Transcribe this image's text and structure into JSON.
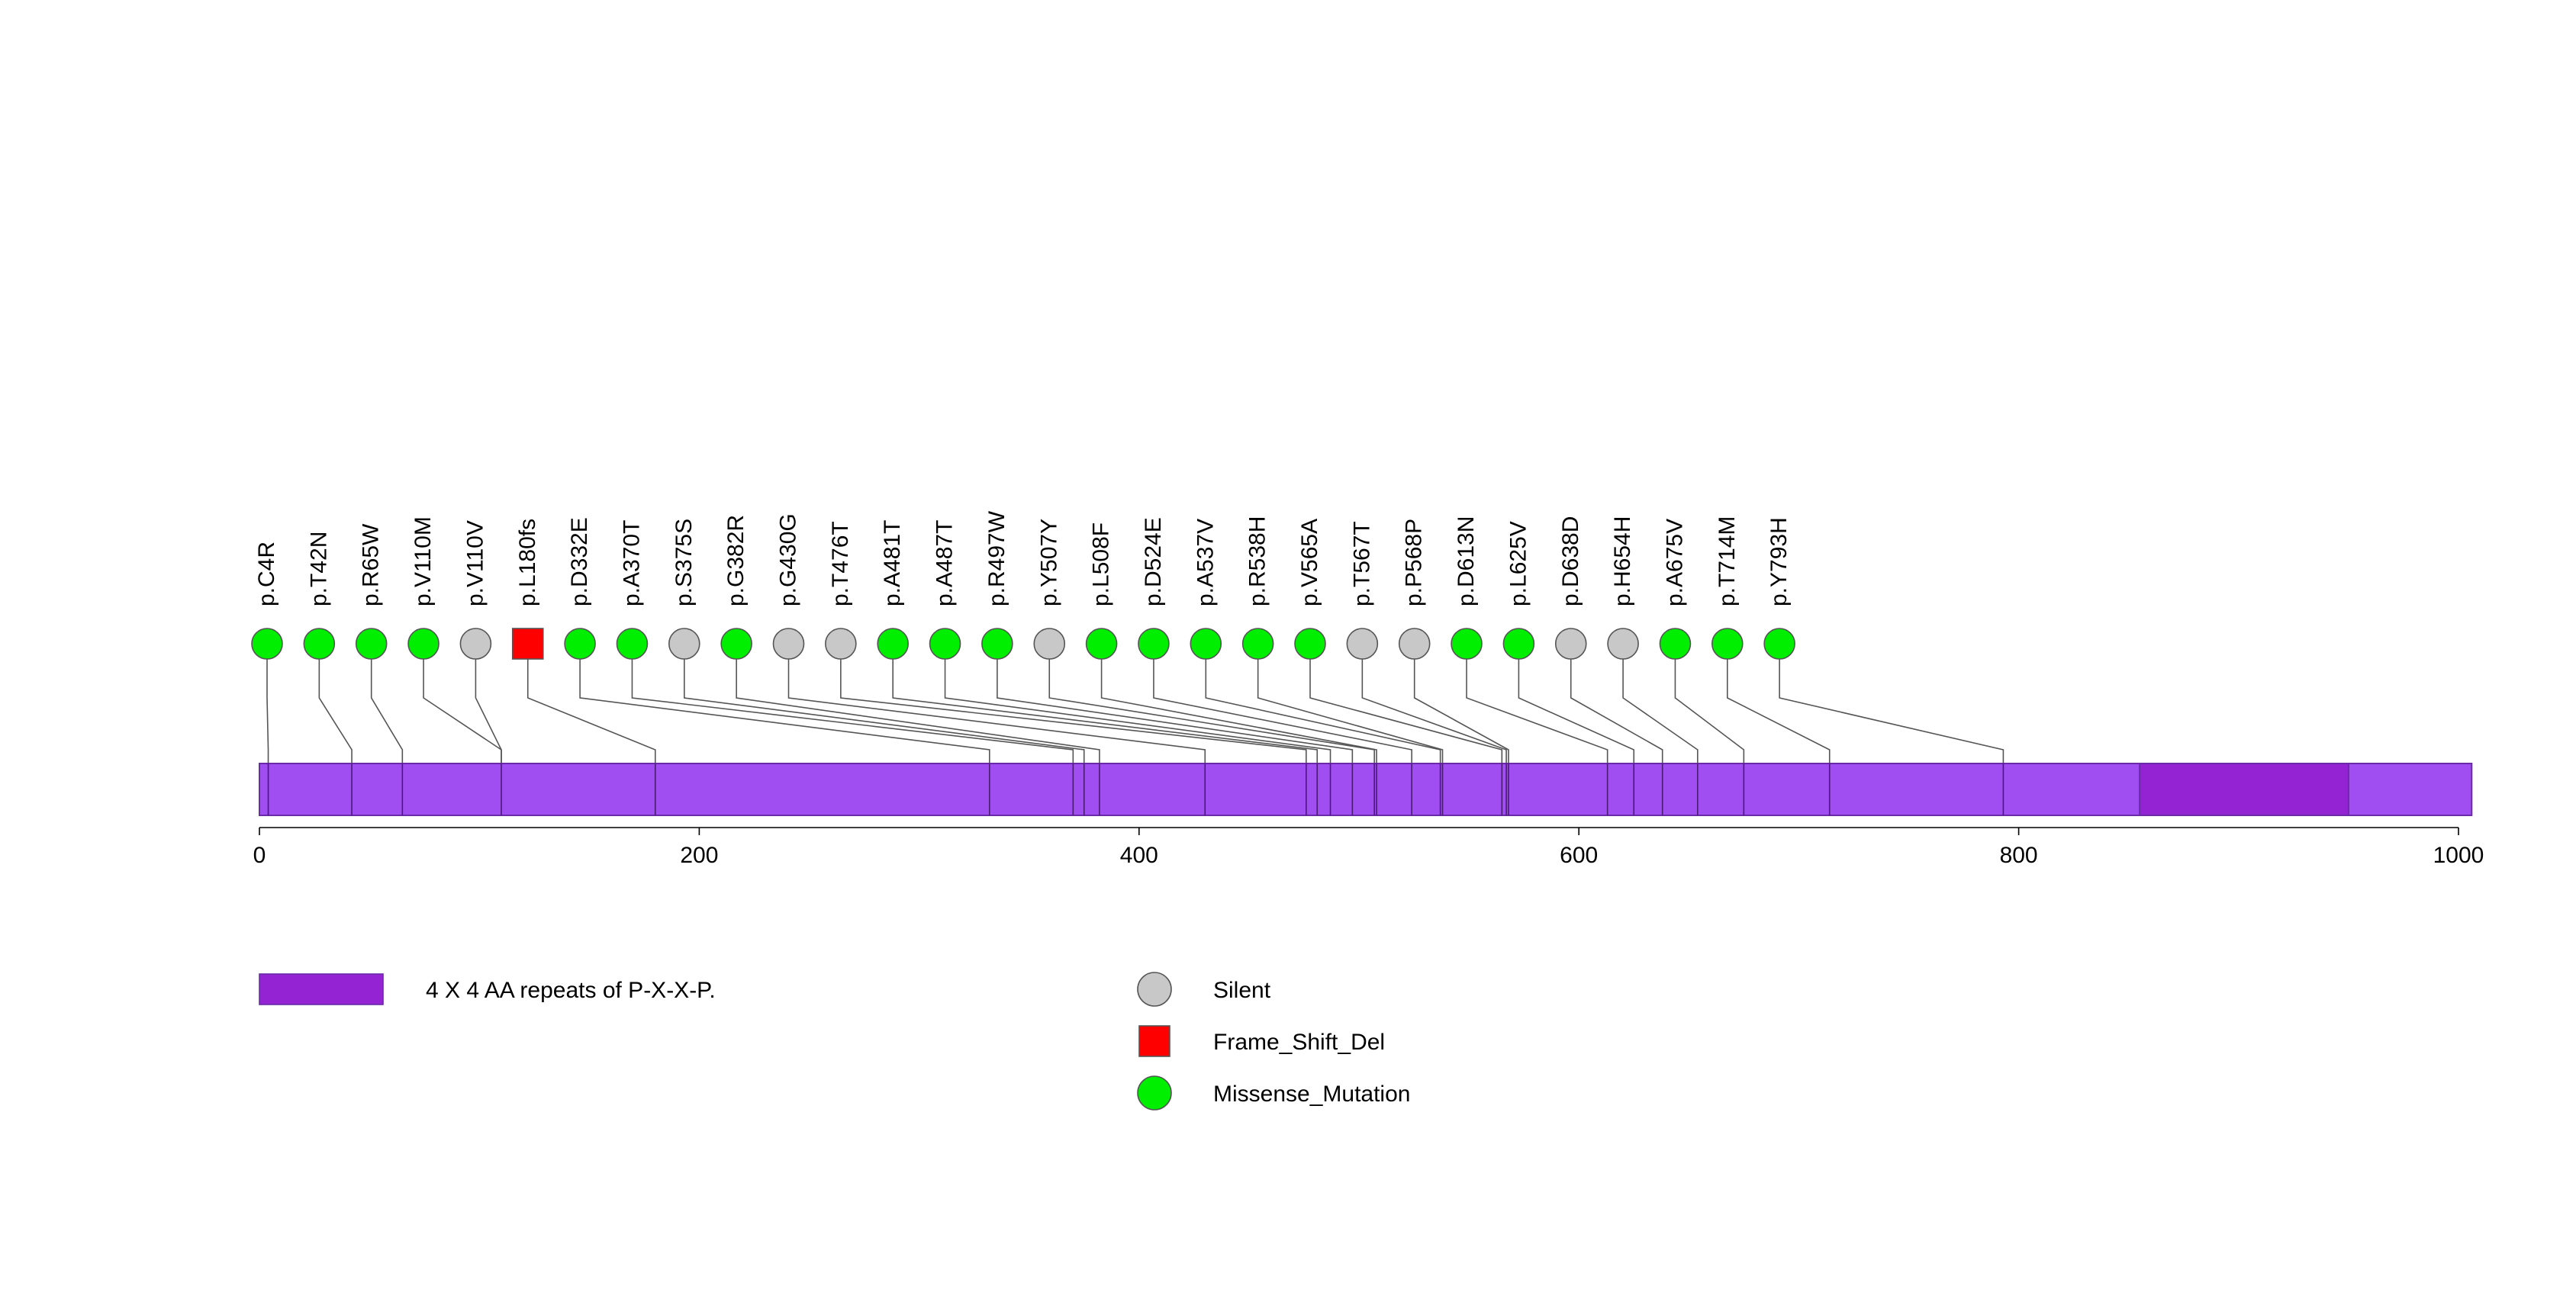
{
  "chart_data": {
    "type": "lollipop",
    "title": "",
    "protein_length": 1006,
    "x_axis": {
      "min": 0,
      "max": 1006,
      "ticks": [
        0,
        200,
        400,
        600,
        800,
        1000
      ],
      "tick_labels": [
        "0",
        "200",
        "400",
        "600",
        "800",
        "1000"
      ]
    },
    "domains": [
      {
        "name": "4 X 4 AA repeats of P-X-X-P.",
        "start": 855,
        "end": 950,
        "color": "#9323d3"
      }
    ],
    "backbone_color": "#a04ef2",
    "mutations": [
      {
        "label": "p.C4R",
        "position": 4,
        "type": "Missense_Mutation"
      },
      {
        "label": "p.T42N",
        "position": 42,
        "type": "Missense_Mutation"
      },
      {
        "label": "p.R65W",
        "position": 65,
        "type": "Missense_Mutation"
      },
      {
        "label": "p.V110M",
        "position": 110,
        "type": "Missense_Mutation"
      },
      {
        "label": "p.V110V",
        "position": 110,
        "type": "Silent"
      },
      {
        "label": "p.L180fs",
        "position": 180,
        "type": "Frame_Shift_Del"
      },
      {
        "label": "p.D332E",
        "position": 332,
        "type": "Missense_Mutation"
      },
      {
        "label": "p.A370T",
        "position": 370,
        "type": "Missense_Mutation"
      },
      {
        "label": "p.S375S",
        "position": 375,
        "type": "Silent"
      },
      {
        "label": "p.G382R",
        "position": 382,
        "type": "Missense_Mutation"
      },
      {
        "label": "p.G430G",
        "position": 430,
        "type": "Silent"
      },
      {
        "label": "p.T476T",
        "position": 476,
        "type": "Silent"
      },
      {
        "label": "p.A481T",
        "position": 481,
        "type": "Missense_Mutation"
      },
      {
        "label": "p.A487T",
        "position": 487,
        "type": "Missense_Mutation"
      },
      {
        "label": "p.R497W",
        "position": 497,
        "type": "Missense_Mutation"
      },
      {
        "label": "p.Y507Y",
        "position": 507,
        "type": "Silent"
      },
      {
        "label": "p.L508F",
        "position": 508,
        "type": "Missense_Mutation"
      },
      {
        "label": "p.D524E",
        "position": 524,
        "type": "Missense_Mutation"
      },
      {
        "label": "p.A537V",
        "position": 537,
        "type": "Missense_Mutation"
      },
      {
        "label": "p.R538H",
        "position": 538,
        "type": "Missense_Mutation"
      },
      {
        "label": "p.V565A",
        "position": 565,
        "type": "Missense_Mutation"
      },
      {
        "label": "p.T567T",
        "position": 567,
        "type": "Silent"
      },
      {
        "label": "p.P568P",
        "position": 568,
        "type": "Silent"
      },
      {
        "label": "p.D613N",
        "position": 613,
        "type": "Missense_Mutation"
      },
      {
        "label": "p.L625V",
        "position": 625,
        "type": "Missense_Mutation"
      },
      {
        "label": "p.D638D",
        "position": 638,
        "type": "Silent"
      },
      {
        "label": "p.H654H",
        "position": 654,
        "type": "Silent"
      },
      {
        "label": "p.A675V",
        "position": 675,
        "type": "Missense_Mutation"
      },
      {
        "label": "p.T714M",
        "position": 714,
        "type": "Missense_Mutation"
      },
      {
        "label": "p.Y793H",
        "position": 793,
        "type": "Missense_Mutation"
      }
    ],
    "legend": {
      "domain_label": "4 X 4 AA repeats of P-X-X-P.",
      "types": [
        {
          "name": "Silent",
          "shape": "circle",
          "color": "#c8c8c8"
        },
        {
          "name": "Frame_Shift_Del",
          "shape": "square",
          "color": "#ff0000"
        },
        {
          "name": "Missense_Mutation",
          "shape": "circle",
          "color": "#00ee00"
        }
      ]
    }
  }
}
